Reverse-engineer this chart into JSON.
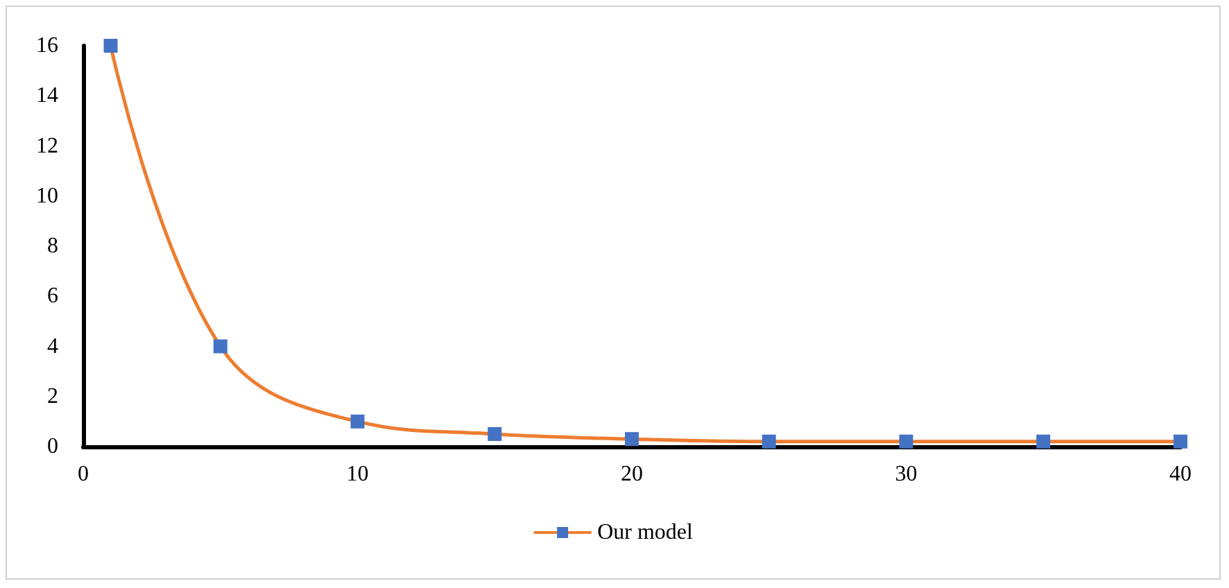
{
  "chart_data": {
    "type": "line",
    "x": [
      1,
      5,
      10,
      15,
      20,
      25,
      30,
      35,
      40
    ],
    "series": [
      {
        "name": "Our model",
        "color": "#ed7d31",
        "colors": [
          "#4472c4",
          "#4472c4",
          "#4472c4",
          "#4472c4",
          "#4472c4",
          "#4472c4",
          "#4472c4",
          "#4472c4",
          "#4472c4"
        ],
        "values": [
          16,
          4,
          1,
          0.5,
          0.3,
          0.2,
          0.2,
          0.2,
          0.2
        ]
      }
    ],
    "xlim": [
      0,
      40
    ],
    "xticks": [
      0,
      10,
      20,
      30,
      40
    ],
    "ylim": [
      0,
      16
    ],
    "yticks": [
      0,
      2,
      4,
      6,
      8,
      10,
      12,
      14,
      16
    ],
    "grid": false,
    "legend": "bottom",
    "marker": "square",
    "line_style": "solid"
  }
}
